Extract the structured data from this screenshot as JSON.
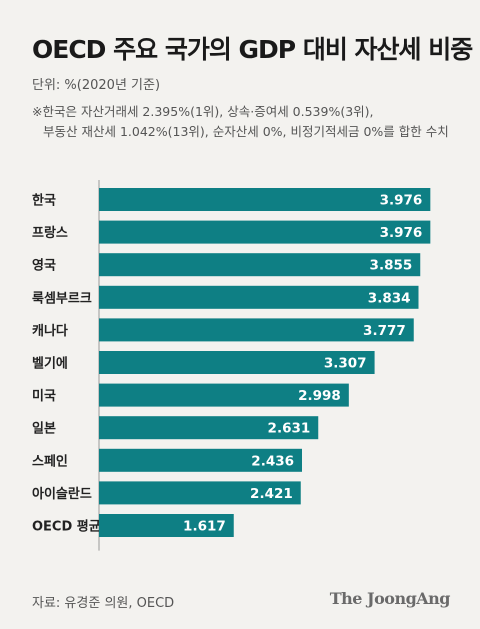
{
  "header": {
    "title": "OECD 주요 국가의 GDP 대비 자산세 비중",
    "unit": "단위: %(2020년 기준)",
    "note_line1": "※한국은 자산거래세 2.395%(1위), 상속·증여세 0.539%(3위),",
    "note_line2": "부동산 재산세 1.042%(13위), 순자산세 0%, 비정기적세금 0%를 합한 수치"
  },
  "footer": {
    "source": "자료: 유경준 의원, OECD",
    "brand": "The JoongAng"
  },
  "colors": {
    "bar": "#0e7f84",
    "axis": "#9a9a9a",
    "label_text": "#ffffff",
    "background": "#f3f2ef"
  },
  "chart_data": {
    "type": "bar",
    "orientation": "horizontal",
    "categories": [
      "한국",
      "프랑스",
      "영국",
      "룩셈부르크",
      "캐나다",
      "벨기에",
      "미국",
      "일본",
      "스페인",
      "아이슬란드",
      "OECD 평균"
    ],
    "values": [
      3.976,
      3.976,
      3.855,
      3.834,
      3.777,
      3.307,
      2.998,
      2.631,
      2.436,
      2.421,
      1.617
    ],
    "value_labels": [
      "3.976",
      "3.976",
      "3.855",
      "3.834",
      "3.777",
      "3.307",
      "2.998",
      "2.631",
      "2.436",
      "2.421",
      "1.617"
    ],
    "xlim": [
      0,
      4.2
    ],
    "grid": false,
    "legend": "none"
  }
}
